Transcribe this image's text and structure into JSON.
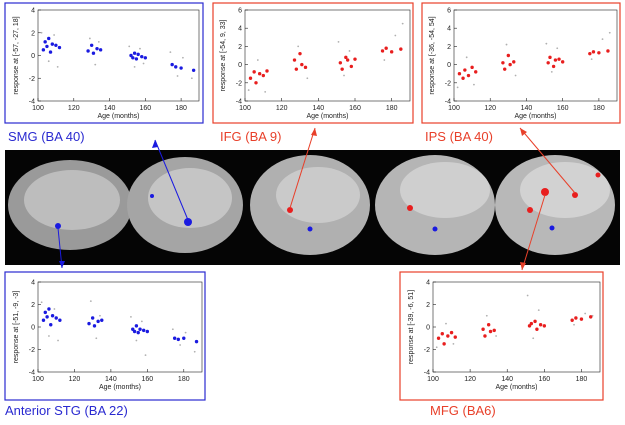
{
  "chart_data": [
    {
      "type": "scatter",
      "title": "SMG (BA 40)",
      "title_color": "#2a2ad0",
      "xlabel": "Age (months)",
      "ylabel": "response at [-57, -27, 18]",
      "xlim": [
        100,
        190
      ],
      "ylim": [
        -4,
        4
      ],
      "xticks": [
        100,
        120,
        140,
        160,
        180
      ],
      "yticks": [
        -4,
        -2,
        0,
        2,
        4
      ],
      "series": [
        {
          "color": "#b0b0b0",
          "x": [
            102,
            106,
            109,
            111,
            129,
            132,
            134,
            151,
            154,
            157,
            159,
            174,
            178,
            181,
            186
          ],
          "values": [
            2.0,
            -0.5,
            1.8,
            -1.0,
            1.5,
            -0.8,
            1.2,
            0.8,
            -1.0,
            0.6,
            -0.7,
            0.3,
            -1.8,
            -0.2,
            -2.0
          ]
        },
        {
          "color": "#1a1ae0",
          "x": [
            103,
            104,
            105,
            106,
            107,
            108,
            110,
            112,
            128,
            130,
            131,
            133,
            135,
            152,
            153,
            154,
            155,
            156,
            158,
            160,
            175,
            177,
            180,
            187
          ],
          "values": [
            0.5,
            1.2,
            0.8,
            1.5,
            0.3,
            1.0,
            0.9,
            0.7,
            0.4,
            0.9,
            0.2,
            0.6,
            0.5,
            0.0,
            -0.2,
            0.2,
            -0.3,
            0.1,
            -0.1,
            -0.2,
            -0.8,
            -1.0,
            -1.1,
            -1.3
          ]
        }
      ]
    },
    {
      "type": "scatter",
      "title": "IFG (BA 9)",
      "title_color": "#e8402a",
      "xlabel": "Age (months)",
      "ylabel": "response at [-54, 9, 33]",
      "xlim": [
        100,
        190
      ],
      "ylim": [
        -4,
        6
      ],
      "xticks": [
        100,
        120,
        140,
        160,
        180
      ],
      "yticks": [
        -4,
        -2,
        0,
        2,
        4,
        6
      ],
      "series": [
        {
          "color": "#b0b0b0",
          "x": [
            102,
            107,
            111,
            129,
            134,
            151,
            154,
            157,
            176,
            182,
            186
          ],
          "values": [
            -2.8,
            0.5,
            -3.0,
            2.0,
            -1.5,
            2.5,
            -1.2,
            1.5,
            0.5,
            3.2,
            4.5
          ]
        },
        {
          "color": "#e81e1e",
          "x": [
            103,
            105,
            106,
            108,
            110,
            112,
            127,
            128,
            130,
            131,
            133,
            152,
            153,
            155,
            156,
            158,
            160,
            175,
            177,
            180,
            185
          ],
          "values": [
            -1.5,
            -0.8,
            -2.0,
            -1.0,
            -1.2,
            -0.7,
            0.5,
            -0.5,
            1.2,
            0.0,
            -0.3,
            0.2,
            -0.5,
            0.8,
            0.5,
            -0.2,
            0.6,
            1.5,
            1.8,
            1.4,
            1.7
          ]
        }
      ]
    },
    {
      "type": "scatter",
      "title": "IPS (BA 40)",
      "title_color": "#e8402a",
      "xlabel": "Age (months)",
      "ylabel": "response at [-36, -54, 54]",
      "xlim": [
        100,
        190
      ],
      "ylim": [
        -4,
        6
      ],
      "xticks": [
        100,
        120,
        140,
        160,
        180
      ],
      "yticks": [
        -4,
        -2,
        0,
        2,
        4,
        6
      ],
      "series": [
        {
          "color": "#b0b0b0",
          "x": [
            102,
            107,
            111,
            129,
            134,
            151,
            154,
            157,
            176,
            182,
            186
          ],
          "values": [
            -2.5,
            0.8,
            -2.2,
            2.2,
            -1.2,
            2.3,
            -0.8,
            1.8,
            0.6,
            2.8,
            3.5
          ]
        },
        {
          "color": "#e81e1e",
          "x": [
            103,
            105,
            106,
            108,
            110,
            112,
            127,
            128,
            130,
            131,
            133,
            152,
            153,
            155,
            156,
            158,
            160,
            175,
            177,
            180,
            185
          ],
          "values": [
            -1.0,
            -1.5,
            -0.6,
            -1.2,
            -0.3,
            -0.8,
            0.2,
            -0.5,
            1.0,
            0.0,
            0.3,
            0.2,
            0.8,
            -0.2,
            0.5,
            0.6,
            0.3,
            1.2,
            1.4,
            1.3,
            1.5
          ]
        }
      ]
    },
    {
      "type": "scatter",
      "title": "Anterior STG (BA 22)",
      "title_color": "#2a2ad0",
      "xlabel": "Age (months)",
      "ylabel": "response at [-51, -9, -3]",
      "xlim": [
        100,
        190
      ],
      "ylim": [
        -4,
        4
      ],
      "xticks": [
        100,
        120,
        140,
        160,
        180
      ],
      "yticks": [
        -4,
        -2,
        0,
        2,
        4
      ],
      "series": [
        {
          "color": "#b0b0b0",
          "x": [
            102,
            106,
            109,
            111,
            129,
            132,
            134,
            151,
            154,
            157,
            159,
            174,
            178,
            181,
            186
          ],
          "values": [
            2.2,
            -0.8,
            1.6,
            -1.2,
            2.3,
            -1.0,
            1.0,
            0.9,
            -1.2,
            0.5,
            -2.5,
            -0.2,
            -1.6,
            -0.5,
            -2.2
          ]
        },
        {
          "color": "#1a1ae0",
          "x": [
            103,
            104,
            105,
            106,
            107,
            108,
            110,
            112,
            128,
            130,
            131,
            133,
            135,
            152,
            153,
            154,
            155,
            156,
            158,
            160,
            175,
            177,
            180,
            187
          ],
          "values": [
            0.6,
            1.3,
            0.9,
            1.6,
            0.2,
            1.0,
            0.8,
            0.6,
            0.3,
            0.8,
            0.1,
            0.5,
            0.6,
            -0.2,
            -0.4,
            0.1,
            -0.5,
            -0.2,
            -0.3,
            -0.4,
            -1.0,
            -1.1,
            -1.0,
            -1.3
          ]
        }
      ]
    },
    {
      "type": "scatter",
      "title": "MFG (BA6)",
      "title_color": "#e8402a",
      "xlabel": "Age (months)",
      "ylabel": "response at [-39, -6, 51]",
      "xlim": [
        100,
        190
      ],
      "ylim": [
        -4,
        4
      ],
      "xticks": [
        100,
        120,
        140,
        160,
        180
      ],
      "yticks": [
        -4,
        -2,
        0,
        2,
        4
      ],
      "series": [
        {
          "color": "#b0b0b0",
          "x": [
            102,
            107,
            111,
            129,
            134,
            151,
            154,
            157,
            176,
            182,
            186
          ],
          "values": [
            -1.8,
            0.3,
            -1.5,
            1.0,
            -0.8,
            2.8,
            -1.0,
            1.5,
            0.2,
            1.2,
            1.0
          ]
        },
        {
          "color": "#e81e1e",
          "x": [
            103,
            105,
            106,
            108,
            110,
            112,
            127,
            128,
            130,
            131,
            133,
            152,
            153,
            155,
            156,
            158,
            160,
            175,
            177,
            180,
            185
          ],
          "values": [
            -1.0,
            -0.6,
            -1.5,
            -0.8,
            -0.5,
            -0.9,
            -0.2,
            -0.8,
            0.2,
            -0.4,
            -0.3,
            0.1,
            0.3,
            0.5,
            -0.2,
            0.2,
            0.1,
            0.6,
            0.8,
            0.7,
            0.9
          ]
        }
      ]
    }
  ]
}
